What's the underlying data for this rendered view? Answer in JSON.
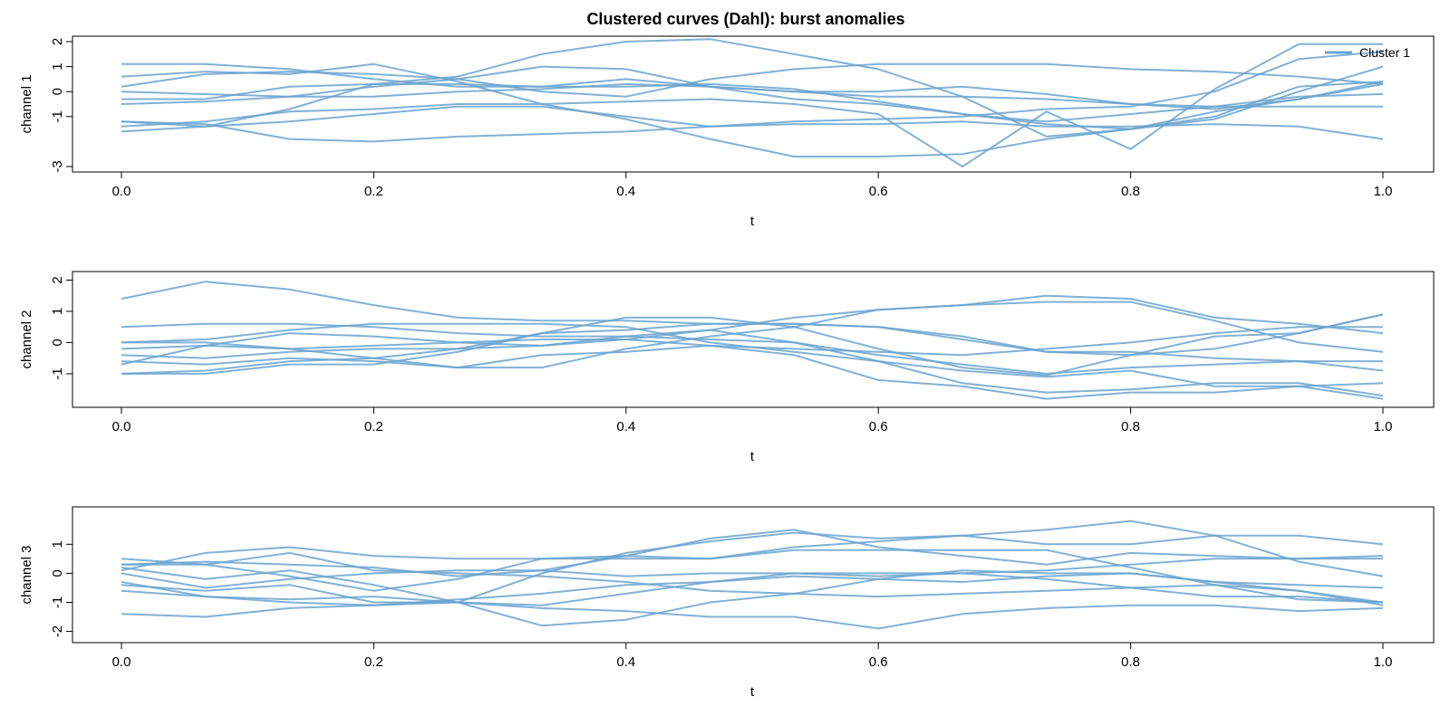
{
  "figure": {
    "title": "Clustered curves (Dahl): burst anomalies",
    "colors": {
      "cluster_1": "#6AA3CF"
    },
    "legend": {
      "position": "top-right",
      "entries": [
        "Cluster 1"
      ]
    }
  },
  "chart_data": [
    {
      "type": "line",
      "xlabel": "t",
      "ylabel": "channel 1",
      "xlim": [
        0,
        1
      ],
      "ylim": [
        -3,
        2
      ],
      "xticks": [
        "0.0",
        "0.2",
        "0.4",
        "0.6",
        "0.8",
        "1.0"
      ],
      "yticks": [
        "-3",
        "-1",
        "0",
        "1",
        "2"
      ],
      "grid": false,
      "legend": "top-right",
      "x": [
        0,
        0.0667,
        0.1333,
        0.2,
        0.2667,
        0.3333,
        0.4,
        0.4667,
        0.5333,
        0.6,
        0.6667,
        0.7333,
        0.8,
        0.8667,
        0.9333,
        1.0
      ],
      "series": [
        {
          "values": [
            1.1,
            1.1,
            0.9,
            0.5,
            0.2,
            0.2,
            0.5,
            0.2,
            0.0,
            -0.2,
            -0.2,
            -0.3,
            -0.5,
            -0.7,
            -0.3,
            0.3
          ]
        },
        {
          "values": [
            0.6,
            0.8,
            0.7,
            1.1,
            0.4,
            -0.5,
            -1.1,
            -1.9,
            -2.6,
            -2.6,
            -2.5,
            -1.9,
            -1.5,
            -1.1,
            0.0,
            1.0
          ]
        },
        {
          "values": [
            -1.2,
            -1.4,
            -0.7,
            0.3,
            0.6,
            1.5,
            2.0,
            2.1,
            1.5,
            0.9,
            -0.2,
            -1.8,
            -1.5,
            -1.0,
            0.2,
            0.4
          ]
        },
        {
          "values": [
            -1.6,
            -1.4,
            -1.2,
            -0.9,
            -0.6,
            -0.6,
            -1.0,
            -1.4,
            -1.2,
            -1.1,
            -1.0,
            -0.7,
            -0.6,
            0.0,
            1.3,
            1.6
          ]
        },
        {
          "values": [
            -1.2,
            -1.3,
            -1.9,
            -2.0,
            -1.8,
            -1.7,
            -1.6,
            -1.4,
            -1.3,
            -1.3,
            -1.2,
            -1.4,
            -1.4,
            -1.3,
            -1.4,
            -1.9
          ]
        },
        {
          "values": [
            0.2,
            0.7,
            0.8,
            0.7,
            0.5,
            1.0,
            0.9,
            0.2,
            -0.3,
            -0.5,
            -0.9,
            -1.3,
            -1.5,
            -0.8,
            -0.3,
            0.4
          ]
        },
        {
          "values": [
            0.0,
            -0.1,
            -0.2,
            0.2,
            0.5,
            0.0,
            -0.2,
            0.5,
            0.9,
            1.1,
            1.1,
            1.1,
            0.9,
            0.8,
            0.6,
            0.3
          ]
        },
        {
          "values": [
            -0.5,
            -0.4,
            -0.2,
            -0.2,
            0.0,
            0.1,
            0.3,
            0.2,
            0.0,
            0.0,
            0.2,
            -0.1,
            -0.5,
            -0.6,
            -0.6,
            -0.6
          ]
        },
        {
          "values": [
            -0.3,
            -0.3,
            0.2,
            0.3,
            0.3,
            0.2,
            0.2,
            0.3,
            0.1,
            -0.4,
            -0.9,
            -1.2,
            -0.9,
            -0.6,
            -0.2,
            -0.1
          ]
        },
        {
          "values": [
            -1.4,
            -1.2,
            -0.8,
            -0.7,
            -0.5,
            -0.5,
            -0.4,
            -0.3,
            -0.5,
            -0.9,
            -3.0,
            -0.8,
            -2.3,
            0.1,
            1.9,
            1.9
          ]
        }
      ]
    },
    {
      "type": "line",
      "xlabel": "t",
      "ylabel": "channel 2",
      "xlim": [
        0,
        1
      ],
      "ylim": [
        -1.9,
        2.1
      ],
      "xticks": [
        "0.0",
        "0.2",
        "0.4",
        "0.6",
        "0.8",
        "1.0"
      ],
      "yticks": [
        "-1",
        "0",
        "1",
        "2"
      ],
      "grid": false,
      "x": [
        0,
        0.0667,
        0.1333,
        0.2,
        0.2667,
        0.3333,
        0.4,
        0.4667,
        0.5333,
        0.6,
        0.6667,
        0.7333,
        0.8,
        0.8667,
        0.9333,
        1.0
      ],
      "series": [
        {
          "values": [
            1.4,
            1.95,
            1.7,
            1.2,
            0.8,
            0.7,
            0.7,
            0.6,
            0.6,
            0.5,
            0.1,
            -0.3,
            -0.3,
            -0.5,
            -0.6,
            -0.6
          ]
        },
        {
          "values": [
            0.5,
            0.6,
            0.6,
            0.5,
            0.3,
            0.2,
            0.2,
            0.1,
            0.0,
            -0.4,
            -0.7,
            -1.0,
            -0.8,
            -0.7,
            -0.6,
            -0.9
          ]
        },
        {
          "values": [
            0.0,
            0.1,
            0.4,
            0.6,
            0.6,
            0.6,
            0.5,
            0.0,
            -0.3,
            -0.6,
            -0.9,
            -1.1,
            -0.9,
            -1.4,
            -1.4,
            -1.8
          ]
        },
        {
          "values": [
            -0.4,
            -0.5,
            -0.3,
            -0.2,
            -0.2,
            -0.1,
            0.1,
            0.4,
            0.8,
            1.05,
            1.2,
            1.3,
            1.3,
            0.7,
            0.0,
            -0.3
          ]
        },
        {
          "values": [
            -0.6,
            -0.7,
            -0.5,
            -0.6,
            -0.8,
            -0.8,
            -0.2,
            0.2,
            0.5,
            1.05,
            1.2,
            1.5,
            1.4,
            0.8,
            0.6,
            0.3
          ]
        },
        {
          "values": [
            -1.0,
            -1.0,
            -0.7,
            -0.7,
            -0.3,
            0.3,
            0.4,
            0.6,
            0.6,
            0.5,
            0.2,
            -0.3,
            -0.4,
            -0.2,
            0.3,
            0.9
          ]
        },
        {
          "values": [
            -1.0,
            -0.9,
            -0.6,
            -0.5,
            -0.2,
            0.3,
            0.8,
            0.8,
            0.5,
            -0.2,
            -0.8,
            -1.05,
            -0.4,
            0.2,
            0.3,
            0.9
          ]
        },
        {
          "values": [
            -0.7,
            -0.1,
            0.3,
            0.2,
            0.0,
            -0.1,
            0.2,
            0.4,
            0.0,
            -0.6,
            -1.3,
            -1.6,
            -1.5,
            -1.3,
            -1.3,
            -1.7
          ]
        },
        {
          "values": [
            0.0,
            0.0,
            -0.2,
            -0.1,
            0.0,
            0.1,
            0.1,
            -0.1,
            -0.2,
            -0.3,
            -0.4,
            -0.2,
            0.0,
            0.3,
            0.5,
            0.5
          ]
        },
        {
          "values": [
            -0.2,
            -0.1,
            -0.2,
            -0.5,
            -0.8,
            -0.4,
            -0.3,
            -0.1,
            -0.4,
            -1.2,
            -1.4,
            -1.8,
            -1.6,
            -1.6,
            -1.4,
            -1.3
          ]
        }
      ]
    },
    {
      "type": "line",
      "xlabel": "t",
      "ylabel": "channel 3",
      "xlim": [
        0,
        1
      ],
      "ylim": [
        -2.2,
        2.1
      ],
      "xticks": [
        "0.0",
        "0.2",
        "0.4",
        "0.6",
        "0.8",
        "1.0"
      ],
      "yticks": [
        "-2",
        "-1",
        "0",
        "1"
      ],
      "grid": false,
      "x": [
        0,
        0.0667,
        0.1333,
        0.2,
        0.2667,
        0.3333,
        0.4,
        0.4667,
        0.5333,
        0.6,
        0.6667,
        0.7333,
        0.8,
        0.8667,
        0.9333,
        1.0
      ],
      "series": [
        {
          "values": [
            0.5,
            0.3,
            0.7,
            0.1,
            0.0,
            -0.1,
            -0.3,
            -0.6,
            -0.7,
            -0.8,
            -0.7,
            -0.6,
            -0.5,
            -0.4,
            -0.6,
            -1.0
          ]
        },
        {
          "values": [
            0.3,
            0.4,
            0.3,
            0.2,
            -0.1,
            0.1,
            0.6,
            1.2,
            1.5,
            0.9,
            0.6,
            0.3,
            0.7,
            0.6,
            0.5,
            0.6
          ]
        },
        {
          "values": [
            0.2,
            -0.2,
            0.1,
            -0.4,
            -1.0,
            0.0,
            0.7,
            1.1,
            1.4,
            1.2,
            1.3,
            1.5,
            1.8,
            1.3,
            0.4,
            -0.1
          ]
        },
        {
          "values": [
            0.1,
            0.7,
            0.9,
            0.6,
            0.5,
            0.5,
            0.5,
            0.5,
            0.9,
            1.1,
            1.3,
            1.0,
            1.0,
            1.3,
            1.3,
            1.0
          ]
        },
        {
          "values": [
            -0.3,
            -0.8,
            -0.9,
            -0.8,
            -1.0,
            -1.1,
            -0.7,
            -0.3,
            0.0,
            0.0,
            0.0,
            -0.2,
            -0.5,
            -0.8,
            -0.8,
            -1.0
          ]
        },
        {
          "values": [
            -0.6,
            -0.8,
            -1.0,
            -1.1,
            -1.0,
            -1.8,
            -1.6,
            -1.0,
            -0.7,
            -0.2,
            0.1,
            0.0,
            0.0,
            -0.3,
            -0.4,
            -0.5
          ]
        },
        {
          "values": [
            -0.4,
            -0.6,
            -0.4,
            -1.0,
            -1.0,
            -1.2,
            -1.3,
            -1.5,
            -1.5,
            -1.9,
            -1.4,
            -1.2,
            -1.1,
            -1.1,
            -1.3,
            -1.2
          ]
        },
        {
          "values": [
            -1.4,
            -1.5,
            -1.2,
            -1.1,
            -0.9,
            -0.7,
            -0.4,
            -0.3,
            -0.1,
            -0.2,
            -0.3,
            -0.1,
            0.0,
            -0.3,
            -0.6,
            -1.1
          ]
        },
        {
          "values": [
            0.0,
            -0.5,
            -0.2,
            0.0,
            0.1,
            0.1,
            -0.1,
            0.0,
            0.0,
            -0.1,
            0.0,
            0.1,
            0.3,
            0.5,
            0.5,
            0.5
          ]
        },
        {
          "values": [
            0.3,
            0.3,
            -0.1,
            -0.6,
            -0.2,
            0.5,
            0.6,
            0.5,
            0.8,
            0.8,
            0.8,
            0.8,
            0.2,
            -0.4,
            -0.9,
            -1.0
          ]
        }
      ]
    }
  ]
}
